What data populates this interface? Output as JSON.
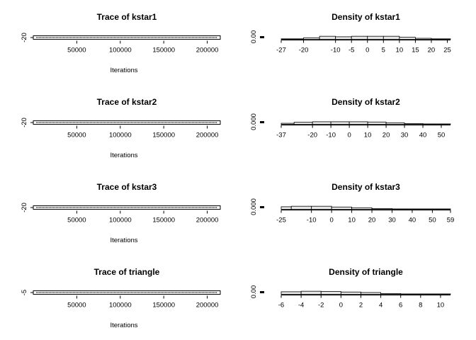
{
  "chart_data": [
    {
      "type": "line",
      "panel": "trace",
      "title": "Trace of kstar1",
      "xlabel": "Iterations",
      "ylabel": "",
      "x_ticks": [
        50000,
        100000,
        150000,
        200000
      ],
      "x_tick_labels": [
        "50000",
        "100000",
        "150000",
        "200000"
      ],
      "y_tick_labels": [
        "-20"
      ],
      "xlim": [
        0,
        215000
      ],
      "ylim": [
        -20.5,
        -19.5
      ],
      "grid": false,
      "description_values": "MCMC trace flat at approximately -20 across all iterations"
    },
    {
      "type": "bar",
      "panel": "density",
      "title": "Density of kstar1",
      "xlabel": "",
      "ylabel": "",
      "x_tick_labels": [
        "-27",
        "-20",
        "-10",
        "-5",
        "0",
        "5",
        "10",
        "15",
        "20",
        "25"
      ],
      "x_ticks": [
        -27,
        -20,
        -10,
        -5,
        0,
        5,
        10,
        15,
        20,
        25
      ],
      "y_tick_labels": [
        "0.00"
      ],
      "xlim": [
        -27,
        26
      ],
      "ylim": [
        0,
        0.05
      ],
      "bins": [
        [
          -27,
          -20
        ],
        [
          -20,
          -15
        ],
        [
          -15,
          -10
        ],
        [
          -10,
          -5
        ],
        [
          -5,
          0
        ],
        [
          0,
          5
        ],
        [
          5,
          10
        ],
        [
          10,
          15
        ],
        [
          15,
          20
        ],
        [
          20,
          26
        ]
      ],
      "values": [
        0.002,
        0.006,
        0.012,
        0.01,
        0.012,
        0.012,
        0.012,
        0.008,
        0.004,
        0.002
      ]
    },
    {
      "type": "line",
      "panel": "trace",
      "title": "Trace of kstar2",
      "xlabel": "Iterations",
      "ylabel": "",
      "x_ticks": [
        50000,
        100000,
        150000,
        200000
      ],
      "x_tick_labels": [
        "50000",
        "100000",
        "150000",
        "200000"
      ],
      "y_tick_labels": [
        "-20"
      ],
      "xlim": [
        0,
        215000
      ],
      "ylim": [
        -20.5,
        -19.5
      ],
      "grid": false
    },
    {
      "type": "bar",
      "panel": "density",
      "title": "Density of kstar2",
      "xlabel": "",
      "ylabel": "",
      "x_tick_labels": [
        "-37",
        "-20",
        "-10",
        "0",
        "10",
        "20",
        "30",
        "40",
        "50"
      ],
      "x_ticks": [
        -37,
        -20,
        -10,
        0,
        10,
        20,
        30,
        40,
        50
      ],
      "y_tick_labels": [
        "0.000"
      ],
      "xlim": [
        -37,
        55
      ],
      "ylim": [
        0,
        0.05
      ],
      "bins": [
        [
          -37,
          -30
        ],
        [
          -30,
          -20
        ],
        [
          -20,
          -10
        ],
        [
          -10,
          0
        ],
        [
          0,
          10
        ],
        [
          10,
          20
        ],
        [
          20,
          30
        ],
        [
          30,
          40
        ],
        [
          40,
          50
        ],
        [
          50,
          55
        ]
      ],
      "values": [
        0.004,
        0.008,
        0.01,
        0.01,
        0.01,
        0.009,
        0.006,
        0.003,
        0.001,
        0.0005
      ]
    },
    {
      "type": "line",
      "panel": "trace",
      "title": "Trace of kstar3",
      "xlabel": "Iterations",
      "ylabel": "",
      "x_ticks": [
        50000,
        100000,
        150000,
        200000
      ],
      "x_tick_labels": [
        "50000",
        "100000",
        "150000",
        "200000"
      ],
      "y_tick_labels": [
        "-20"
      ],
      "xlim": [
        0,
        215000
      ],
      "ylim": [
        -20.5,
        -19.5
      ],
      "grid": false
    },
    {
      "type": "bar",
      "panel": "density",
      "title": "Density of kstar3",
      "xlabel": "",
      "ylabel": "",
      "x_tick_labels": [
        "-25",
        "-10",
        "0",
        "10",
        "20",
        "30",
        "40",
        "50",
        "59"
      ],
      "x_ticks": [
        -25,
        -10,
        0,
        10,
        20,
        30,
        40,
        50,
        59
      ],
      "y_tick_labels": [
        "0.000"
      ],
      "xlim": [
        -25,
        59
      ],
      "ylim": [
        0,
        0.05
      ],
      "bins": [
        [
          -25,
          -20
        ],
        [
          -20,
          -10
        ],
        [
          -10,
          0
        ],
        [
          0,
          10
        ],
        [
          10,
          20
        ],
        [
          20,
          30
        ],
        [
          30,
          40
        ],
        [
          40,
          50
        ],
        [
          50,
          59
        ]
      ],
      "values": [
        0.01,
        0.012,
        0.012,
        0.009,
        0.006,
        0.003,
        0.0015,
        0.0008,
        0.0003
      ]
    },
    {
      "type": "line",
      "panel": "trace",
      "title": "Trace of triangle",
      "xlabel": "Iterations",
      "ylabel": "",
      "x_ticks": [
        50000,
        100000,
        150000,
        200000
      ],
      "x_tick_labels": [
        "50000",
        "100000",
        "150000",
        "200000"
      ],
      "y_tick_labels": [
        "-5"
      ],
      "xlim": [
        0,
        215000
      ],
      "ylim": [
        -5.5,
        -4.5
      ],
      "grid": false
    },
    {
      "type": "bar",
      "panel": "density",
      "title": "Density of triangle",
      "xlabel": "",
      "ylabel": "",
      "x_tick_labels": [
        "-6",
        "-4",
        "-2",
        "0",
        "2",
        "4",
        "6",
        "8",
        "10"
      ],
      "x_ticks": [
        -6,
        -4,
        -2,
        0,
        2,
        4,
        6,
        8,
        10
      ],
      "y_tick_labels": [
        "0.00"
      ],
      "xlim": [
        -6,
        11
      ],
      "ylim": [
        0,
        0.05
      ],
      "bins": [
        [
          -6,
          -4
        ],
        [
          -4,
          -2
        ],
        [
          -2,
          0
        ],
        [
          0,
          2
        ],
        [
          2,
          4
        ],
        [
          4,
          6
        ],
        [
          6,
          8
        ],
        [
          8,
          11
        ]
      ],
      "values": [
        0.01,
        0.012,
        0.011,
        0.009,
        0.007,
        0.003,
        0.0015,
        0.0005
      ]
    }
  ]
}
